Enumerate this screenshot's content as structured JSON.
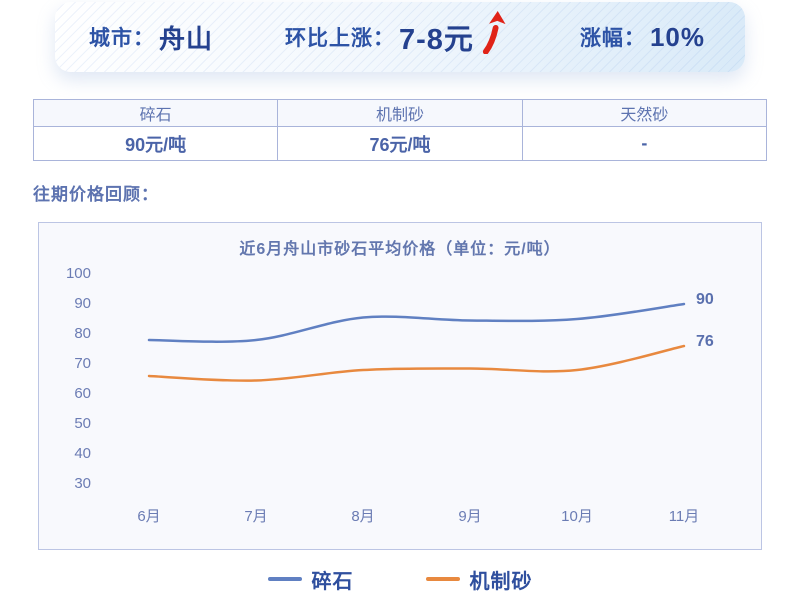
{
  "banner": {
    "city_label": "城市：",
    "city_value": "舟山",
    "mom_label": "环比上涨：",
    "mom_value": "7-8元",
    "rise_icon": "up-arrow",
    "rate_label": "涨幅：",
    "rate_value": "10%"
  },
  "price_table": {
    "columns": [
      {
        "header": "碎石",
        "value": "90元/吨"
      },
      {
        "header": "机制砂",
        "value": "76元/吨"
      },
      {
        "header": "天然砂",
        "value": "-"
      }
    ]
  },
  "section_title": "往期价格回顾：",
  "colors": {
    "banner_text": "#2d53a6",
    "arrow_red": "#e02318",
    "table_text": "#5d73b0",
    "crushed_stone_line": "#6080c2",
    "machine_sand_line": "#e8893f"
  },
  "chart_data": {
    "type": "line",
    "title": "近6月舟山市砂石平均价格（单位：元/吨）",
    "categories": [
      "6月",
      "7月",
      "8月",
      "9月",
      "10月",
      "11月"
    ],
    "series": [
      {
        "name": "碎石",
        "color": "#6080c2",
        "values": [
          78,
          78,
          85.5,
          84.5,
          85,
          90
        ],
        "end_label": "90"
      },
      {
        "name": "机制砂",
        "color": "#e8893f",
        "values": [
          66,
          64.5,
          68,
          68.5,
          68,
          76
        ],
        "end_label": "76"
      }
    ],
    "y_ticks": [
      100,
      90,
      80,
      70,
      60,
      50,
      40,
      30
    ],
    "ylim": [
      25,
      105
    ],
    "grid": false,
    "legend_position": "bottom",
    "xlabel": "",
    "ylabel": ""
  }
}
